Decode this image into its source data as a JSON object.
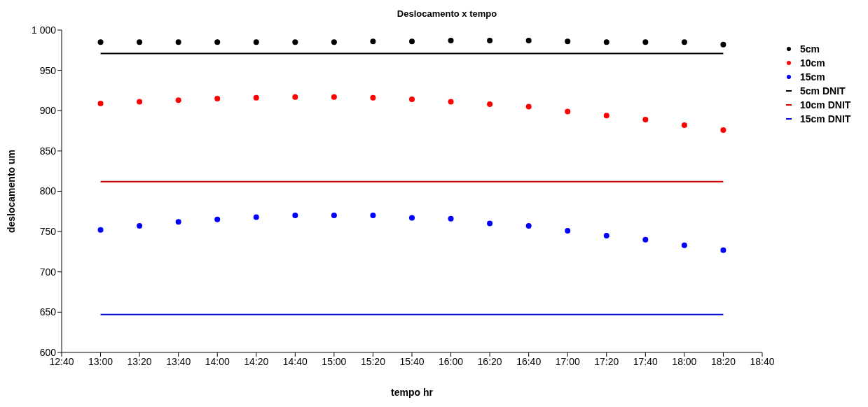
{
  "chart_data": {
    "type": "scatter",
    "title": "Deslocamento x tempo",
    "xlabel": "tempo hr",
    "ylabel": "deslocamento um",
    "x": [
      13,
      13.3333,
      13.6667,
      14,
      14.3333,
      14.6667,
      15,
      15.3333,
      15.6667,
      16,
      16.3333,
      16.6667,
      17,
      17.3333,
      17.6667,
      18,
      18.3333
    ],
    "series": [
      {
        "name": "5cm",
        "color": "#000000",
        "values": [
          985,
          985,
          985,
          985,
          985,
          985,
          985,
          986,
          986,
          987,
          987,
          987,
          986,
          985,
          985,
          985,
          982
        ]
      },
      {
        "name": "10cm",
        "color": "#ff0000",
        "values": [
          909,
          911,
          913,
          915,
          916,
          917,
          917,
          916,
          914,
          911,
          908,
          905,
          899,
          894,
          889,
          882,
          876
        ]
      },
      {
        "name": "15cm",
        "color": "#0000ff",
        "values": [
          752,
          757,
          762,
          765,
          768,
          770,
          770,
          770,
          767,
          766,
          760,
          757,
          751,
          745,
          740,
          733,
          727
        ]
      },
      {
        "name": "5cm DNIT",
        "type": "line",
        "marker": "none",
        "color": "#000000",
        "values": [
          971,
          971,
          971,
          971,
          971,
          971,
          971,
          971,
          971,
          971,
          971,
          971,
          971,
          971,
          971,
          971,
          971
        ]
      },
      {
        "name": "10cm DNIT",
        "type": "line",
        "marker": "none",
        "color": "#cc0000",
        "values": [
          812,
          812,
          812,
          812,
          812,
          812,
          812,
          812,
          812,
          812,
          812,
          812,
          812,
          812,
          812,
          812,
          812
        ]
      },
      {
        "name": "15cm DNIT",
        "type": "line",
        "marker": "none",
        "color": "#0000cc",
        "values": [
          647,
          647,
          647,
          647,
          647,
          647,
          647,
          647,
          647,
          647,
          647,
          647,
          647,
          647,
          647,
          647,
          647
        ]
      }
    ],
    "xlim": [
      12.6667,
      18.6667
    ],
    "xticks": [
      {
        "value": 12.6667,
        "label": "12:40"
      },
      {
        "value": 13,
        "label": "13:00"
      },
      {
        "value": 13.3333,
        "label": "13:20"
      },
      {
        "value": 13.6667,
        "label": "13:40"
      },
      {
        "value": 14,
        "label": "14:00"
      },
      {
        "value": 14.3333,
        "label": "14:20"
      },
      {
        "value": 14.6667,
        "label": "14:40"
      },
      {
        "value": 15,
        "label": "15:00"
      },
      {
        "value": 15.3333,
        "label": "15:20"
      },
      {
        "value": 15.6667,
        "label": "15:40"
      },
      {
        "value": 16,
        "label": "16:00"
      },
      {
        "value": 16.3333,
        "label": "16:20"
      },
      {
        "value": 16.6667,
        "label": "16:40"
      },
      {
        "value": 17,
        "label": "17:00"
      },
      {
        "value": 17.3333,
        "label": "17:20"
      },
      {
        "value": 17.6667,
        "label": "17:40"
      },
      {
        "value": 18,
        "label": "18:00"
      },
      {
        "value": 18.3333,
        "label": "18:20"
      },
      {
        "value": 18.6667,
        "label": "18:40"
      }
    ],
    "ylim": [
      600,
      1000
    ],
    "yticks": [
      600,
      650,
      700,
      750,
      800,
      850,
      900,
      950,
      {
        "value": 1000,
        "label": "1 000"
      }
    ],
    "marker": "circle",
    "legend": "right"
  }
}
